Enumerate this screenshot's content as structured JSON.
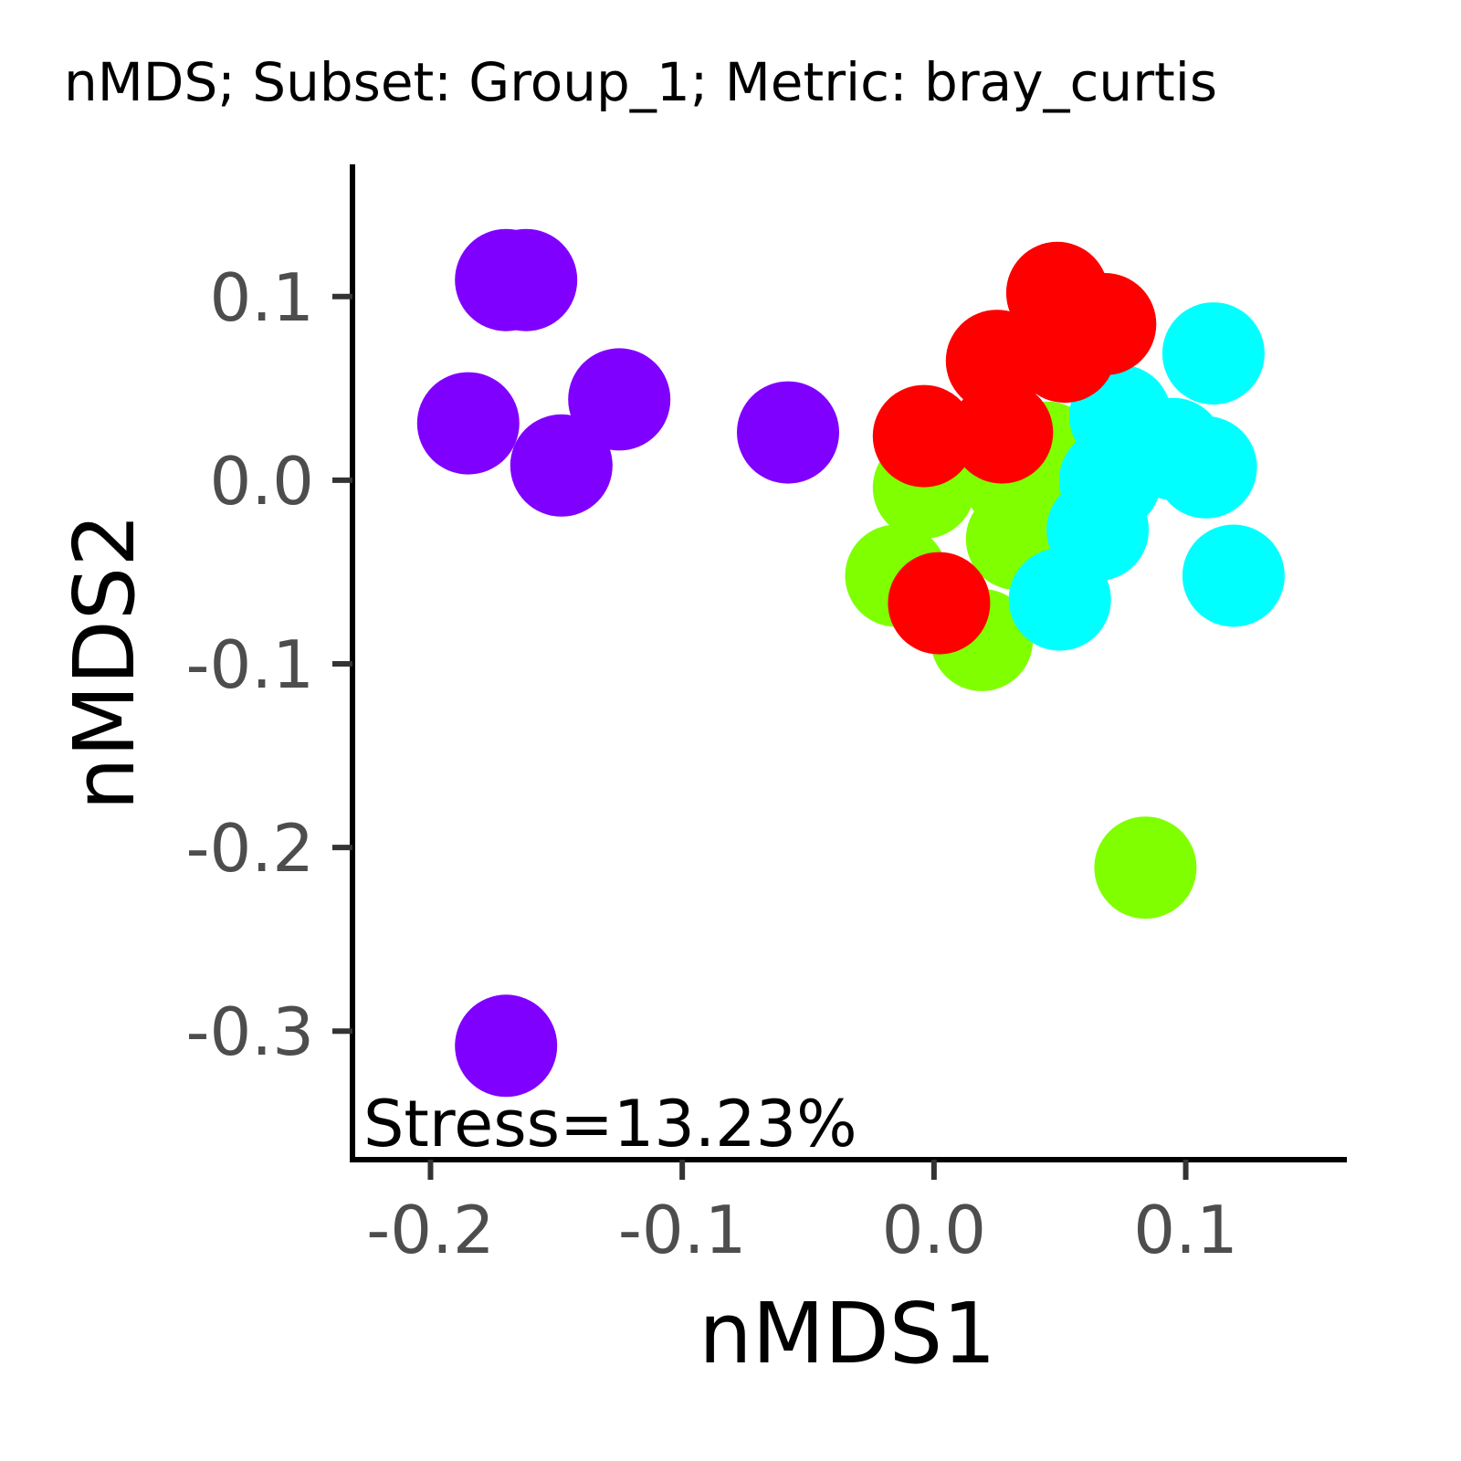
{
  "chart_data": {
    "type": "scatter",
    "title": "nMDS; Subset: Group_1; Metric: bray_curtis",
    "xlabel": "nMDS1",
    "ylabel": "nMDS2",
    "xlim": [
      -0.231,
      0.164
    ],
    "ylim": [
      -0.37,
      0.172
    ],
    "x_ticks": [
      -0.2,
      -0.1,
      0.0,
      0.1
    ],
    "x_tick_labels": [
      "-0.2",
      "-0.1",
      "0.0",
      "0.1"
    ],
    "y_ticks": [
      0.1,
      0.0,
      -0.1,
      -0.2,
      -0.3
    ],
    "y_tick_labels": [
      "0.1",
      "0.0",
      "-0.1",
      "-0.2",
      "-0.3"
    ],
    "grid": false,
    "legend": "none",
    "annotation": "Stress=13.23%",
    "series": [
      {
        "color": "#8000ff",
        "points": [
          {
            "x": -0.17,
            "y": 0.109
          },
          {
            "x": -0.162,
            "y": 0.109
          },
          {
            "x": -0.185,
            "y": 0.031
          },
          {
            "x": -0.148,
            "y": 0.008
          },
          {
            "x": -0.125,
            "y": 0.044
          },
          {
            "x": -0.058,
            "y": 0.026
          },
          {
            "x": -0.17,
            "y": -0.308
          }
        ]
      },
      {
        "color": "#80ff00",
        "points": [
          {
            "x": -0.004,
            "y": -0.004
          },
          {
            "x": 0.032,
            "y": 0.0
          },
          {
            "x": 0.045,
            "y": 0.015
          },
          {
            "x": 0.033,
            "y": -0.032
          },
          {
            "x": -0.015,
            "y": -0.052
          },
          {
            "x": 0.019,
            "y": -0.087
          },
          {
            "x": 0.084,
            "y": -0.211
          }
        ]
      },
      {
        "color": "#00ffff",
        "points": [
          {
            "x": 0.074,
            "y": 0.035
          },
          {
            "x": 0.095,
            "y": 0.017
          },
          {
            "x": 0.108,
            "y": 0.007
          },
          {
            "x": 0.07,
            "y": 0.0
          },
          {
            "x": 0.065,
            "y": -0.027
          },
          {
            "x": 0.05,
            "y": -0.065
          },
          {
            "x": 0.111,
            "y": 0.069
          },
          {
            "x": 0.119,
            "y": -0.052
          }
        ]
      },
      {
        "color": "#ff0000",
        "points": [
          {
            "x": 0.049,
            "y": 0.102
          },
          {
            "x": 0.068,
            "y": 0.085
          },
          {
            "x": 0.052,
            "y": 0.07
          },
          {
            "x": 0.025,
            "y": 0.065
          },
          {
            "x": 0.027,
            "y": 0.026
          },
          {
            "x": -0.004,
            "y": 0.024
          },
          {
            "x": 0.002,
            "y": -0.067
          }
        ]
      }
    ]
  }
}
